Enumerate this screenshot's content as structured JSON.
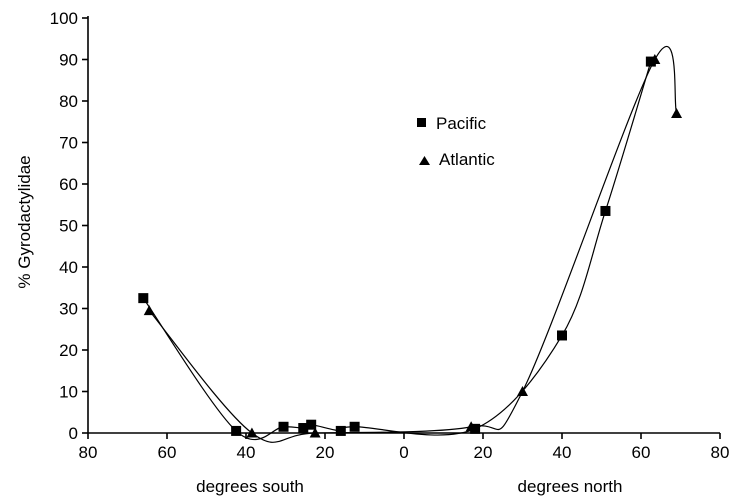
{
  "chart_data": {
    "type": "scatter",
    "ylabel": "% Gyrodactylidae",
    "xlabel_left": "degrees south",
    "xlabel_right": "degrees north",
    "xlim": [
      -80,
      80
    ],
    "ylim": [
      0,
      100
    ],
    "x_ticks": [
      {
        "value": -80,
        "label": "80"
      },
      {
        "value": -60,
        "label": "60"
      },
      {
        "value": -40,
        "label": "40"
      },
      {
        "value": -20,
        "label": "20"
      },
      {
        "value": 0,
        "label": "0"
      },
      {
        "value": 20,
        "label": "20"
      },
      {
        "value": 40,
        "label": "40"
      },
      {
        "value": 60,
        "label": "60"
      },
      {
        "value": 80,
        "label": "80"
      }
    ],
    "y_ticks": [
      {
        "value": 0,
        "label": "0"
      },
      {
        "value": 10,
        "label": "10"
      },
      {
        "value": 20,
        "label": "20"
      },
      {
        "value": 30,
        "label": "30"
      },
      {
        "value": 40,
        "label": "40"
      },
      {
        "value": 50,
        "label": "50"
      },
      {
        "value": 60,
        "label": "60"
      },
      {
        "value": 70,
        "label": "70"
      },
      {
        "value": 80,
        "label": "80"
      },
      {
        "value": 90,
        "label": "90"
      },
      {
        "value": 100,
        "label": "100"
      }
    ],
    "legend_position": "upper-center",
    "grid": false,
    "series": [
      {
        "name": "Pacific",
        "marker": "square",
        "points": [
          {
            "x": -66,
            "y": 32.5
          },
          {
            "x": -42.5,
            "y": 0.5
          },
          {
            "x": -30.5,
            "y": 1.5
          },
          {
            "x": -25.5,
            "y": 1.2
          },
          {
            "x": -23.5,
            "y": 2
          },
          {
            "x": -16,
            "y": 0.5
          },
          {
            "x": -12.5,
            "y": 1.5
          },
          {
            "x": 18,
            "y": 1
          },
          {
            "x": 40,
            "y": 23.5
          },
          {
            "x": 51,
            "y": 53.5
          },
          {
            "x": 62.5,
            "y": 89.5
          }
        ]
      },
      {
        "name": "Atlantic",
        "marker": "triangle",
        "points": [
          {
            "x": -64.5,
            "y": 29.5
          },
          {
            "x": -38.5,
            "y": 0
          },
          {
            "x": -22.5,
            "y": 0
          },
          {
            "x": 17,
            "y": 1.5
          },
          {
            "x": 30,
            "y": 10
          },
          {
            "x": 63.5,
            "y": 90
          },
          {
            "x": 69,
            "y": 77
          }
        ]
      }
    ]
  }
}
